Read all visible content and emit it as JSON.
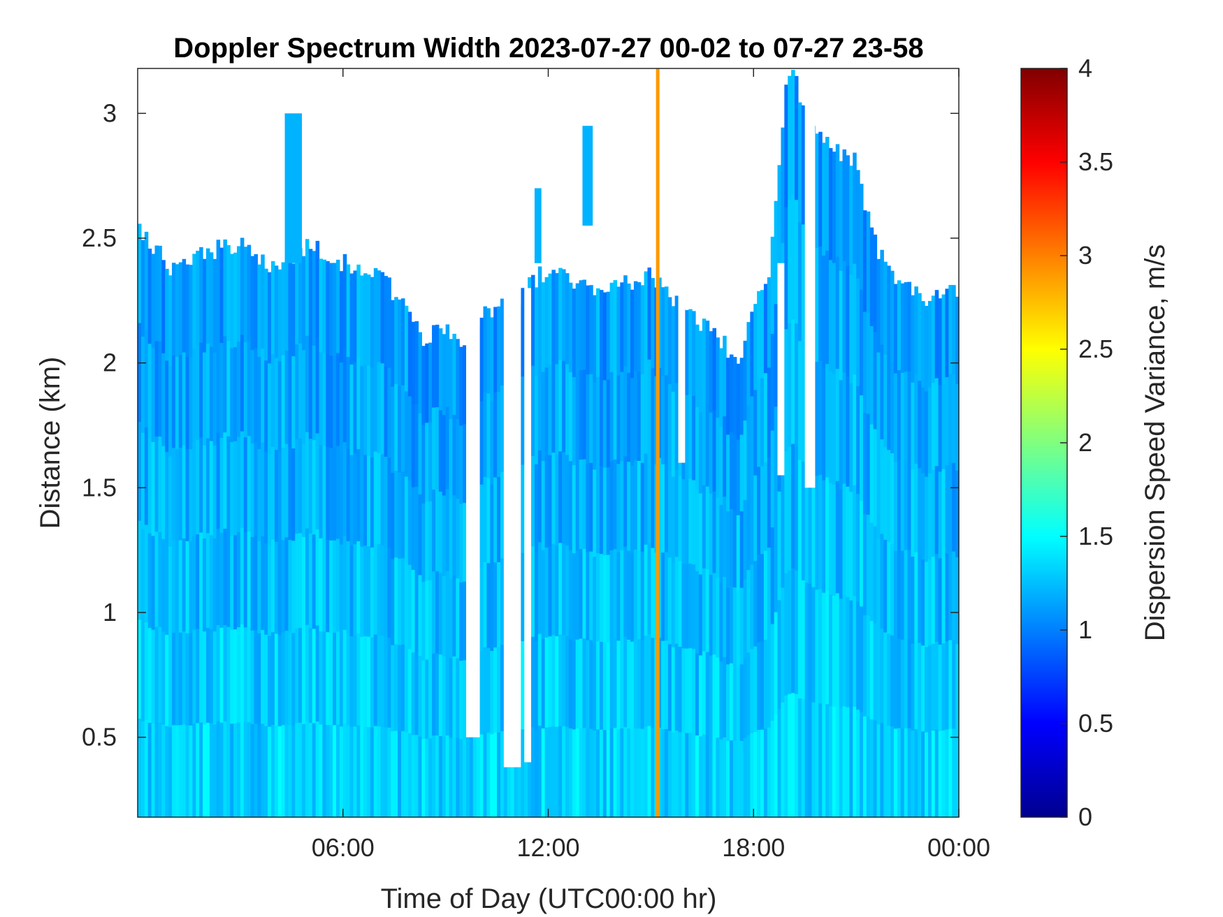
{
  "chart_data": {
    "type": "heatmap",
    "title": "Doppler Spectrum Width 2023-07-27 00-02 to 07-27 23-58",
    "xlabel": "Time of Day (UTC00:00 hr)",
    "ylabel": "Distance (km)",
    "xlim": [
      0,
      24
    ],
    "ylim": [
      0.18,
      3.18
    ],
    "x_ticks": [
      {
        "value": 6,
        "label": "06:00"
      },
      {
        "value": 12,
        "label": "12:00"
      },
      {
        "value": 18,
        "label": "18:00"
      },
      {
        "value": 24,
        "label": "00:00"
      }
    ],
    "y_ticks": [
      {
        "value": 0.5,
        "label": "0.5"
      },
      {
        "value": 1,
        "label": "1"
      },
      {
        "value": 1.5,
        "label": "1.5"
      },
      {
        "value": 2,
        "label": "2"
      },
      {
        "value": 2.5,
        "label": "2.5"
      },
      {
        "value": 3,
        "label": "3"
      }
    ],
    "colorbar": {
      "label": "Dispersion Speed Variance, m/s",
      "colormap": "jet",
      "clim": [
        0,
        4
      ],
      "ticks": [
        {
          "value": 0,
          "label": "0"
        },
        {
          "value": 0.5,
          "label": "0.5"
        },
        {
          "value": 1,
          "label": "1"
        },
        {
          "value": 1.5,
          "label": "1.5"
        },
        {
          "value": 2,
          "label": "2"
        },
        {
          "value": 2.5,
          "label": "2.5"
        },
        {
          "value": 3,
          "label": "3"
        },
        {
          "value": 3.5,
          "label": "3.5"
        },
        {
          "value": 4,
          "label": "4"
        }
      ]
    },
    "background_value": 1.35,
    "upper_boundary_km": [
      {
        "t": 0.0,
        "h": 2.55
      },
      {
        "t": 1.0,
        "h": 2.38
      },
      {
        "t": 2.0,
        "h": 2.45
      },
      {
        "t": 3.0,
        "h": 2.47
      },
      {
        "t": 4.0,
        "h": 2.38
      },
      {
        "t": 5.0,
        "h": 2.47
      },
      {
        "t": 6.0,
        "h": 2.4
      },
      {
        "t": 7.0,
        "h": 2.38
      },
      {
        "t": 7.5,
        "h": 2.28
      },
      {
        "t": 8.3,
        "h": 2.1
      },
      {
        "t": 9.0,
        "h": 2.15
      },
      {
        "t": 9.5,
        "h": 2.05
      },
      {
        "t": 10.0,
        "h": 2.2
      },
      {
        "t": 11.0,
        "h": 2.25
      },
      {
        "t": 12.0,
        "h": 2.38
      },
      {
        "t": 13.0,
        "h": 2.3
      },
      {
        "t": 14.0,
        "h": 2.3
      },
      {
        "t": 15.0,
        "h": 2.35
      },
      {
        "t": 16.0,
        "h": 2.2
      },
      {
        "t": 17.0,
        "h": 2.1
      },
      {
        "t": 17.6,
        "h": 2.0
      },
      {
        "t": 18.0,
        "h": 2.2
      },
      {
        "t": 18.5,
        "h": 2.4
      },
      {
        "t": 19.0,
        "h": 3.18
      },
      {
        "t": 20.0,
        "h": 2.9
      },
      {
        "t": 21.0,
        "h": 2.8
      },
      {
        "t": 21.5,
        "h": 2.5
      },
      {
        "t": 22.0,
        "h": 2.35
      },
      {
        "t": 23.0,
        "h": 2.25
      },
      {
        "t": 24.0,
        "h": 2.3
      }
    ],
    "gaps": [
      {
        "t0": 9.6,
        "t1": 10.0,
        "bottom_km": 0.5,
        "top_km": 2.2
      },
      {
        "t0": 10.7,
        "t1": 11.2,
        "bottom_km": 0.38,
        "top_km": 2.3
      },
      {
        "t0": 11.3,
        "t1": 11.5,
        "bottom_km": 0.4,
        "top_km": 2.3
      },
      {
        "t0": 15.8,
        "t1": 16.0,
        "bottom_km": 1.6,
        "top_km": 2.3
      },
      {
        "t0": 18.7,
        "t1": 18.9,
        "bottom_km": 1.55,
        "top_km": 2.4
      },
      {
        "t0": 19.5,
        "t1": 19.8,
        "bottom_km": 1.5,
        "top_km": 3.18
      }
    ],
    "plumes": [
      {
        "t0": 4.3,
        "t1": 4.8,
        "bottom_km": 2.4,
        "top_km": 3.0
      },
      {
        "t0": 13.0,
        "t1": 13.3,
        "bottom_km": 2.55,
        "top_km": 2.95
      },
      {
        "t0": 11.6,
        "t1": 11.8,
        "bottom_km": 2.4,
        "top_km": 2.7
      }
    ],
    "artifacts": [
      {
        "type": "vertical_line",
        "t": 15.2,
        "value": 2.9
      }
    ]
  }
}
